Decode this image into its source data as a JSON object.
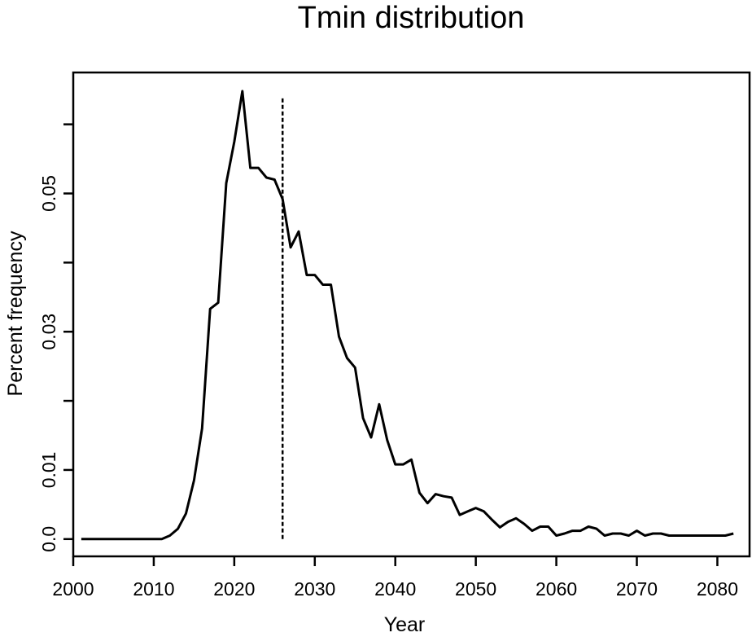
{
  "chart_data": {
    "type": "line",
    "title": "Tmin distribution",
    "xlabel": "Year",
    "ylabel": "Percent frequency",
    "xlim": [
      2000,
      2084
    ],
    "ylim": [
      -0.0025,
      0.0675
    ],
    "x_ticks": [
      2000,
      2010,
      2020,
      2030,
      2040,
      2050,
      2060,
      2070,
      2080
    ],
    "x_tick_labels": [
      "2000",
      "2010",
      "2020",
      "2030",
      "2040",
      "2050",
      "2060",
      "2070",
      "2080"
    ],
    "y_ticks": [
      0.0,
      0.01,
      0.02,
      0.03,
      0.04,
      0.05,
      0.06
    ],
    "y_tick_labels": [
      "0.0",
      "0.01",
      "",
      "0.03",
      "",
      "0.05",
      ""
    ],
    "grid": false,
    "line_color": "#000000",
    "series": [
      {
        "x": [
          2001,
          2002,
          2003,
          2004,
          2005,
          2006,
          2007,
          2008,
          2009,
          2010,
          2011,
          2012,
          2013,
          2014,
          2015,
          2016,
          2017,
          2018,
          2019,
          2020,
          2021,
          2022,
          2023,
          2024,
          2025,
          2026,
          2027,
          2028,
          2029,
          2030,
          2031,
          2032,
          2033,
          2034,
          2035,
          2036,
          2037,
          2038,
          2039,
          2040,
          2041,
          2042,
          2043,
          2044,
          2045,
          2046,
          2047,
          2048,
          2049,
          2050,
          2051,
          2052,
          2053,
          2054,
          2055,
          2056,
          2057,
          2058,
          2059,
          2060,
          2061,
          2062,
          2063,
          2064,
          2065,
          2066,
          2067,
          2068,
          2069,
          2070,
          2071,
          2072,
          2073,
          2074,
          2075,
          2076,
          2077,
          2078,
          2079,
          2080,
          2081,
          2082
        ],
        "y": [
          0.0,
          0.0,
          0.0,
          0.0,
          0.0,
          0.0,
          0.0,
          0.0,
          0.0,
          0.0,
          0.0,
          0.0005,
          0.0015,
          0.0037,
          0.0085,
          0.016,
          0.0333,
          0.0342,
          0.0515,
          0.0575,
          0.0648,
          0.0537,
          0.0537,
          0.0523,
          0.052,
          0.0492,
          0.0422,
          0.0445,
          0.0382,
          0.0382,
          0.0368,
          0.0368,
          0.0293,
          0.0262,
          0.0248,
          0.0175,
          0.0147,
          0.0195,
          0.0143,
          0.0108,
          0.0108,
          0.0115,
          0.0067,
          0.0052,
          0.0065,
          0.0062,
          0.006,
          0.0035,
          0.004,
          0.0045,
          0.004,
          0.0028,
          0.0017,
          0.0025,
          0.003,
          0.0022,
          0.0012,
          0.0018,
          0.0018,
          0.0005,
          0.0008,
          0.0012,
          0.0012,
          0.0018,
          0.0015,
          0.0005,
          0.0008,
          0.0008,
          0.0005,
          0.0012,
          0.0005,
          0.0008,
          0.0008,
          0.0005,
          0.0005,
          0.0005,
          0.0005,
          0.0005,
          0.0005,
          0.0005,
          0.0005,
          0.0008
        ]
      }
    ],
    "reference_line": {
      "x": 2026,
      "y_range": [
        0.0,
        0.064
      ],
      "style": "dashed"
    }
  }
}
